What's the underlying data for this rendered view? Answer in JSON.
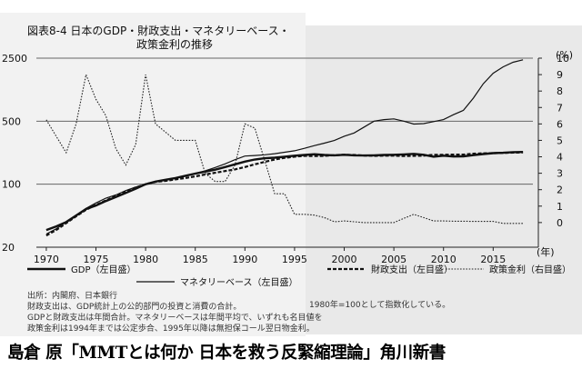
{
  "page": {
    "title_line1": "図表8-4 日本のGDP・財政支出・マネタリーベース・",
    "title_line2": "政策金利の推移",
    "year_unit": "(年)",
    "right_unit": "(%)",
    "notes": [
      "出所：内閣府、日本銀行",
      "財政支出は、GDP統計上の公的部門の投資と消費の合計。",
      "GDPと財政支出は年間合計。マネタリーベースは年間平均で、いずれも名目値を",
      "政策金利は1994年までは公定歩合、1995年以降は無担保コール翌日物金利。"
    ],
    "index_note": "1980年=100として指数化している。",
    "footer": "島倉 原「MMTとは何か 日本を救う反緊縮理論」角川新書"
  },
  "chart_data": {
    "type": "line",
    "title": "日本のGDP・財政支出・マネタリーベース・政策金利の推移",
    "xlabel": "(年)",
    "ylabel_left": "",
    "ylabel_right": "(%)",
    "y_left_scale": "log",
    "y_left_ticks": [
      "20",
      "100",
      "500",
      "2500"
    ],
    "y_right_ticks": [
      "0",
      "1",
      "2",
      "3",
      "4",
      "5",
      "6",
      "7",
      "8",
      "9",
      "10"
    ],
    "x_ticks": [
      "1970",
      "1975",
      "1980",
      "1985",
      "1990",
      "1995",
      "2000",
      "2005",
      "2010",
      "2015"
    ],
    "xlim": [
      1969,
      2019
    ],
    "ylim_left": [
      20,
      2500
    ],
    "ylim_right": [
      -1.5,
      10
    ],
    "legend": [
      {
        "label": "GDP（左目盛）",
        "style": "solid-thick"
      },
      {
        "label": "マネタリーベース（左目盛）",
        "style": "solid-thin"
      },
      {
        "label": "財政支出（左目盛）",
        "style": "dashed-thick"
      },
      {
        "label": "政策金利（右目盛）",
        "style": "dotted"
      }
    ],
    "series": [
      {
        "name": "GDP（左目盛）",
        "axis": "left",
        "x": [
          1970,
          1971,
          1972,
          1973,
          1974,
          1975,
          1976,
          1977,
          1978,
          1979,
          1980,
          1981,
          1982,
          1983,
          1984,
          1985,
          1986,
          1987,
          1988,
          1989,
          1990,
          1991,
          1992,
          1993,
          1994,
          1995,
          1996,
          1997,
          1998,
          1999,
          2000,
          2001,
          2002,
          2003,
          2004,
          2005,
          2006,
          2007,
          2008,
          2009,
          2010,
          2011,
          2012,
          2013,
          2014,
          2015,
          2016,
          2017,
          2018
        ],
        "y": [
          31,
          34,
          38,
          45,
          53,
          58,
          65,
          72,
          80,
          89,
          100,
          107,
          112,
          117,
          124,
          131,
          138,
          145,
          155,
          166,
          178,
          188,
          194,
          197,
          202,
          207,
          211,
          215,
          211,
          209,
          212,
          209,
          208,
          209,
          211,
          212,
          214,
          217,
          212,
          202,
          207,
          203,
          204,
          210,
          216,
          221,
          223,
          227,
          228
        ]
      },
      {
        "name": "マネタリーベース（左目盛）",
        "axis": "left",
        "x": [
          1970,
          1971,
          1972,
          1973,
          1974,
          1975,
          1976,
          1977,
          1978,
          1979,
          1980,
          1981,
          1982,
          1983,
          1984,
          1985,
          1986,
          1987,
          1988,
          1989,
          1990,
          1991,
          1992,
          1993,
          1994,
          1995,
          1996,
          1997,
          1998,
          1999,
          2000,
          2001,
          2002,
          2003,
          2004,
          2005,
          2006,
          2007,
          2008,
          2009,
          2010,
          2011,
          2012,
          2013,
          2014,
          2015,
          2016,
          2017,
          2018
        ],
        "y": [
          28,
          32,
          38,
          45,
          54,
          62,
          70,
          76,
          85,
          93,
          100,
          107,
          112,
          117,
          124,
          132,
          141,
          153,
          168,
          187,
          205,
          208,
          212,
          218,
          226,
          235,
          250,
          268,
          285,
          305,
          340,
          370,
          430,
          500,
          520,
          530,
          500,
          465,
          470,
          495,
          520,
          590,
          660,
          900,
          1300,
          1700,
          2000,
          2250,
          2400
        ]
      },
      {
        "name": "財政支出（左目盛）",
        "axis": "left",
        "x": [
          1970,
          1971,
          1972,
          1973,
          1974,
          1975,
          1976,
          1977,
          1978,
          1979,
          1980,
          1981,
          1982,
          1983,
          1984,
          1985,
          1986,
          1987,
          1988,
          1989,
          1990,
          1991,
          1992,
          1993,
          1994,
          1995,
          1996,
          1997,
          1998,
          1999,
          2000,
          2001,
          2002,
          2003,
          2004,
          2005,
          2006,
          2007,
          2008,
          2009,
          2010,
          2011,
          2012,
          2013,
          2014,
          2015,
          2016,
          2017,
          2018
        ],
        "y": [
          27,
          31,
          37,
          44,
          52,
          59,
          66,
          74,
          83,
          92,
          100,
          106,
          109,
          113,
          117,
          122,
          128,
          134,
          140,
          146,
          155,
          166,
          177,
          188,
          196,
          202,
          206,
          205,
          206,
          210,
          212,
          211,
          208,
          206,
          207,
          207,
          205,
          206,
          207,
          212,
          212,
          213,
          213,
          218,
          220,
          221,
          222,
          224,
          225
        ]
      },
      {
        "name": "政策金利（右目盛）",
        "axis": "right",
        "x": [
          1970,
          1971,
          1972,
          1973,
          1974,
          1975,
          1976,
          1977,
          1978,
          1979,
          1980,
          1981,
          1982,
          1983,
          1984,
          1985,
          1986,
          1987,
          1988,
          1989,
          1990,
          1991,
          1992,
          1993,
          1994,
          1995,
          1996,
          1997,
          1998,
          1999,
          2000,
          2001,
          2002,
          2003,
          2004,
          2005,
          2006,
          2007,
          2008,
          2009,
          2010,
          2011,
          2012,
          2013,
          2014,
          2015,
          2016,
          2017,
          2018
        ],
        "y": [
          6.25,
          5.25,
          4.25,
          6.0,
          9.0,
          7.5,
          6.5,
          4.5,
          3.5,
          4.75,
          9.0,
          6.0,
          5.5,
          5.0,
          5.0,
          5.0,
          3.0,
          2.5,
          2.5,
          3.5,
          6.0,
          5.75,
          3.75,
          1.75,
          1.75,
          0.5,
          0.5,
          0.45,
          0.3,
          0.05,
          0.1,
          0.05,
          0.0,
          0.0,
          0.0,
          0.0,
          0.25,
          0.5,
          0.3,
          0.1,
          0.1,
          0.08,
          0.08,
          0.07,
          0.07,
          0.07,
          -0.05,
          -0.05,
          -0.05
        ]
      }
    ]
  }
}
